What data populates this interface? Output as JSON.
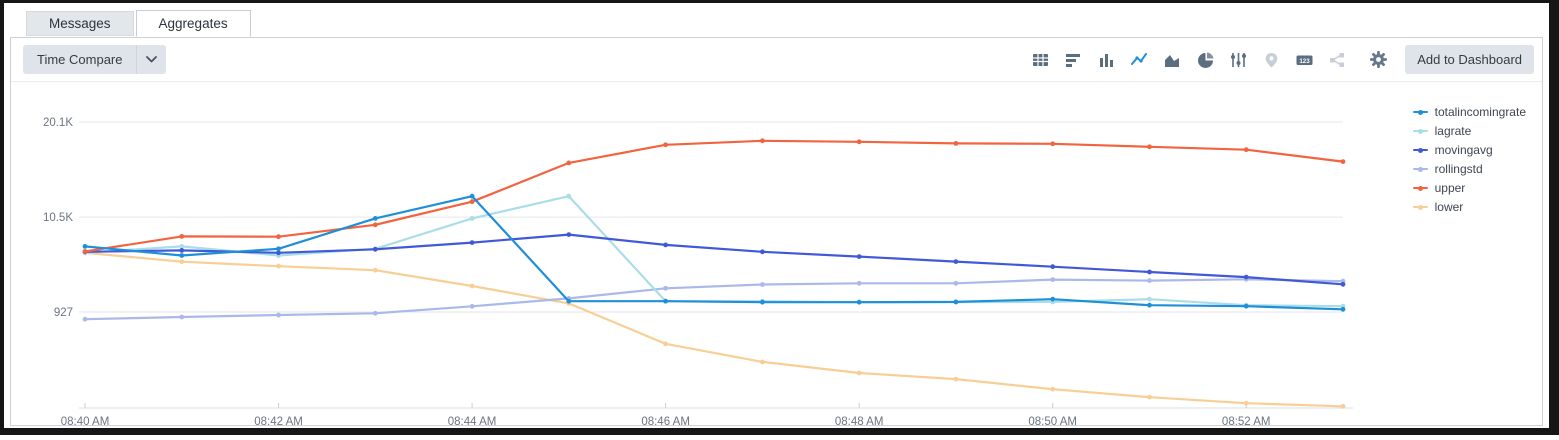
{
  "tabs": [
    {
      "label": "Messages",
      "active": false
    },
    {
      "label": "Aggregates",
      "active": true
    }
  ],
  "toolbar": {
    "time_compare_label": "Time Compare",
    "add_to_dashboard_label": "Add to Dashboard",
    "chart_type_icons": [
      {
        "name": "table-icon",
        "state": "normal"
      },
      {
        "name": "bar-chart-icon",
        "state": "normal"
      },
      {
        "name": "column-chart-icon",
        "state": "normal"
      },
      {
        "name": "line-chart-icon",
        "state": "active"
      },
      {
        "name": "area-chart-icon",
        "state": "normal"
      },
      {
        "name": "pie-chart-icon",
        "state": "normal"
      },
      {
        "name": "scatter-chart-icon",
        "state": "normal"
      },
      {
        "name": "map-pin-icon",
        "state": "disabled"
      },
      {
        "name": "single-value-icon",
        "state": "normal"
      },
      {
        "name": "link-graph-icon",
        "state": "disabled"
      }
    ],
    "single_value_icon_text": "123"
  },
  "colors": {
    "icon_normal": "#5b6e80",
    "icon_active": "#1f8fd8",
    "icon_disabled": "#c6cfd7",
    "gear": "#66788c",
    "grid_line": "#e4e6e9",
    "axis_line": "#d9dcdf",
    "axis_text": "#6b7580"
  },
  "chart_data": {
    "type": "line",
    "categories": [
      "08:40 AM",
      "08:41 AM",
      "08:42 AM",
      "08:43 AM",
      "08:44 AM",
      "08:45 AM",
      "08:46 AM",
      "08:47 AM",
      "08:48 AM",
      "08:49 AM",
      "08:50 AM",
      "08:51 AM",
      "08:52 AM",
      "08:53 AM"
    ],
    "x_tick_label_indices": [
      0,
      2,
      4,
      6,
      8,
      10,
      12
    ],
    "x_tick_labels": [
      "08:40 AM",
      "08:42 AM",
      "08:44 AM",
      "08:46 AM",
      "08:48 AM",
      "08:50 AM",
      "08:52 AM"
    ],
    "y_ticks": [
      {
        "value": 927,
        "label": "927"
      },
      {
        "value": 10500,
        "label": "10.5K"
      },
      {
        "value": 20100,
        "label": "20.1K"
      }
    ],
    "ylim": [
      -8650,
      21100
    ],
    "grid": true,
    "legend_position": "right",
    "series": [
      {
        "name": "totalincomingrate",
        "color": "#1f8fd8",
        "values": [
          7550,
          6630,
          7300,
          10370,
          12610,
          2020,
          2020,
          1920,
          1920,
          1950,
          2220,
          1610,
          1510,
          1200
        ]
      },
      {
        "name": "lagrate",
        "color": "#a9dde8",
        "values": [
          6900,
          7550,
          6630,
          7300,
          10370,
          12610,
          2020,
          2020,
          1920,
          1920,
          1950,
          2220,
          1610,
          1510
        ]
      },
      {
        "name": "movingavg",
        "color": "#4159d7",
        "values": [
          7000,
          7140,
          6900,
          7250,
          7930,
          8740,
          7700,
          7000,
          6520,
          6010,
          5500,
          4960,
          4450,
          3720
        ]
      },
      {
        "name": "rollingstd",
        "color": "#aab9ea",
        "values": [
          200,
          420,
          620,
          800,
          1500,
          2300,
          3320,
          3700,
          3820,
          3820,
          4200,
          4100,
          4230,
          4030
        ]
      },
      {
        "name": "upper",
        "color": "#f2643f",
        "values": [
          7030,
          8560,
          8530,
          9730,
          12060,
          15970,
          17800,
          18200,
          18100,
          17940,
          17900,
          17600,
          17300,
          16100
        ]
      },
      {
        "name": "lower",
        "color": "#f7cf94",
        "values": [
          6900,
          6000,
          5550,
          5150,
          3550,
          1790,
          -2280,
          -4110,
          -5230,
          -5840,
          -6860,
          -7670,
          -8280,
          -8590
        ]
      }
    ]
  }
}
